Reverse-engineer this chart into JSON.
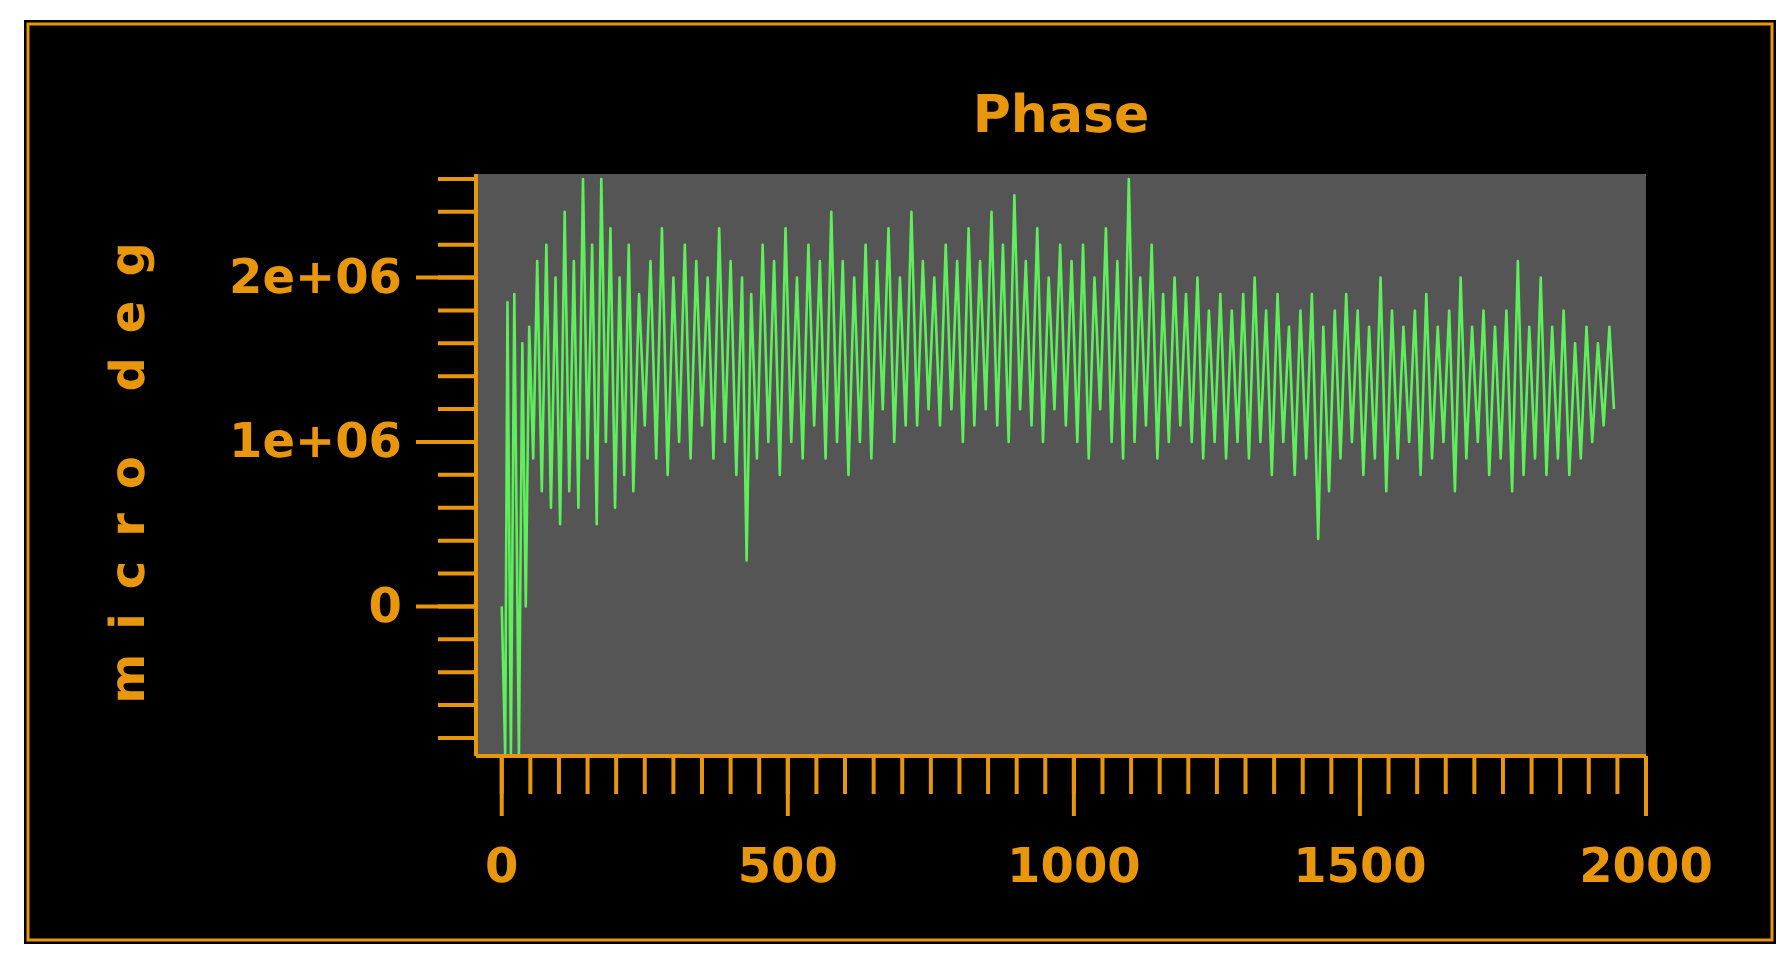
{
  "chart_data": {
    "type": "line",
    "title": "Phase",
    "ylabel": "micro deg",
    "xlim": [
      -45,
      2000
    ],
    "ylim": [
      -910000,
      2630000
    ],
    "xticks": [
      0,
      500,
      1000,
      1500,
      2000
    ],
    "yticks": [
      0,
      {
        "value": 1000000,
        "label": "1e+06"
      },
      {
        "value": 2000000,
        "label": "2e+06"
      }
    ],
    "grid": false,
    "series": [
      {
        "color": "#5ef05a",
        "x": [
          0,
          6,
          10,
          16,
          22,
          30,
          36,
          42,
          48,
          55,
          62,
          70,
          78,
          86,
          94,
          102,
          110,
          118,
          126,
          134,
          142,
          150,
          158,
          166,
          174,
          182,
          190,
          198,
          206,
          214,
          222,
          230,
          240,
          250,
          260,
          270,
          280,
          290,
          300,
          310,
          320,
          330,
          340,
          350,
          360,
          370,
          380,
          390,
          400,
          410,
          420,
          428,
          436,
          446,
          456,
          466,
          476,
          486,
          496,
          506,
          516,
          526,
          536,
          546,
          556,
          566,
          576,
          586,
          596,
          606,
          616,
          626,
          636,
          646,
          656,
          666,
          676,
          686,
          696,
          706,
          716,
          726,
          736,
          746,
          756,
          766,
          776,
          786,
          796,
          806,
          816,
          826,
          836,
          846,
          856,
          866,
          876,
          886,
          896,
          906,
          916,
          926,
          936,
          946,
          956,
          966,
          976,
          986,
          996,
          1006,
          1016,
          1026,
          1036,
          1046,
          1056,
          1066,
          1076,
          1086,
          1096,
          1106,
          1116,
          1126,
          1136,
          1146,
          1156,
          1166,
          1176,
          1186,
          1196,
          1206,
          1216,
          1226,
          1236,
          1246,
          1256,
          1266,
          1276,
          1286,
          1296,
          1306,
          1316,
          1326,
          1336,
          1346,
          1356,
          1366,
          1376,
          1386,
          1396,
          1406,
          1416,
          1427,
          1436,
          1446,
          1456,
          1466,
          1476,
          1486,
          1496,
          1506,
          1516,
          1526,
          1536,
          1546,
          1556,
          1566,
          1576,
          1586,
          1596,
          1606,
          1616,
          1626,
          1636,
          1646,
          1656,
          1666,
          1676,
          1686,
          1696,
          1706,
          1716,
          1726,
          1736,
          1746,
          1756,
          1766,
          1776,
          1786,
          1796,
          1806,
          1816,
          1826,
          1836,
          1846,
          1856,
          1866,
          1876,
          1886,
          1896,
          1906,
          1916,
          1926,
          1936,
          1944
        ],
        "values": [
          0,
          -900000,
          1850000,
          -900000,
          1900000,
          -900000,
          1600000,
          0,
          1700000,
          900000,
          2100000,
          700000,
          2200000,
          600000,
          2000000,
          500000,
          2400000,
          700000,
          2100000,
          600000,
          2600000,
          900000,
          2200000,
          500000,
          2600000,
          1000000,
          2300000,
          600000,
          2000000,
          800000,
          2200000,
          700000,
          1900000,
          1100000,
          2100000,
          900000,
          2300000,
          800000,
          2000000,
          1000000,
          2200000,
          900000,
          2100000,
          1100000,
          2000000,
          900000,
          2300000,
          1000000,
          2100000,
          800000,
          2000000,
          280000,
          1900000,
          900000,
          2200000,
          1000000,
          2100000,
          800000,
          2300000,
          1000000,
          2000000,
          900000,
          2200000,
          1100000,
          2100000,
          900000,
          2400000,
          1000000,
          2100000,
          800000,
          2000000,
          1000000,
          2200000,
          900000,
          2100000,
          1200000,
          2300000,
          1000000,
          2000000,
          1100000,
          2400000,
          1100000,
          2100000,
          1200000,
          2000000,
          1100000,
          2200000,
          1200000,
          2100000,
          1000000,
          2300000,
          1100000,
          2100000,
          1200000,
          2400000,
          1100000,
          2200000,
          1000000,
          2500000,
          1200000,
          2100000,
          1100000,
          2300000,
          1000000,
          2000000,
          1200000,
          2200000,
          1100000,
          2100000,
          1000000,
          2200000,
          900000,
          2000000,
          1200000,
          2300000,
          1000000,
          2100000,
          900000,
          2600000,
          1000000,
          2000000,
          1100000,
          2200000,
          900000,
          1900000,
          1000000,
          2000000,
          1100000,
          1900000,
          1000000,
          2000000,
          900000,
          1800000,
          1000000,
          1900000,
          900000,
          1800000,
          1000000,
          1900000,
          900000,
          2000000,
          1000000,
          1800000,
          800000,
          1900000,
          1000000,
          1700000,
          800000,
          1800000,
          900000,
          1900000,
          410000,
          1700000,
          700000,
          1800000,
          900000,
          1900000,
          1000000,
          1800000,
          800000,
          1700000,
          900000,
          2000000,
          700000,
          1800000,
          900000,
          1700000,
          1000000,
          1800000,
          800000,
          1900000,
          900000,
          1700000,
          1000000,
          1800000,
          700000,
          2000000,
          900000,
          1700000,
          1000000,
          1800000,
          800000,
          1700000,
          900000,
          1800000,
          700000,
          2100000,
          800000,
          1700000,
          900000,
          2000000,
          800000,
          1700000,
          900000,
          1800000,
          800000,
          1600000,
          900000,
          1700000,
          1000000,
          1600000,
          1100000,
          1700000,
          1200000
        ]
      }
    ]
  }
}
